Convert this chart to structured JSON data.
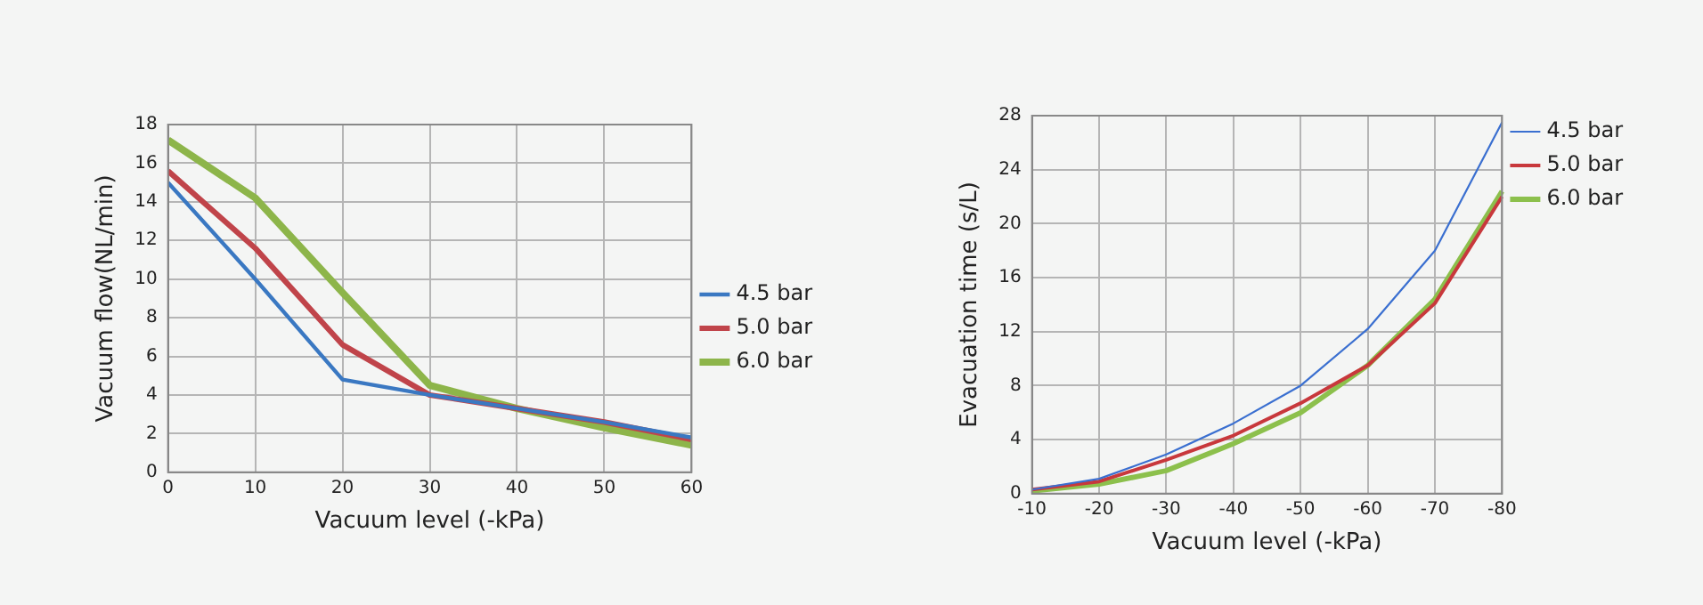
{
  "chart_data": [
    {
      "type": "line",
      "xlabel": "Vacuum level (-kPa)",
      "ylabel": "Vacuum flow(NL/min)",
      "x": [
        0,
        10,
        20,
        30,
        40,
        50,
        60
      ],
      "xlim": [
        0,
        60
      ],
      "xticks": [
        0,
        10,
        20,
        30,
        40,
        50,
        60
      ],
      "ylim": [
        0,
        18
      ],
      "yticks": [
        0,
        2,
        4,
        6,
        8,
        10,
        12,
        14,
        16,
        18
      ],
      "grid": true,
      "legend": "right",
      "marker": "none",
      "line_style": "solid",
      "series": [
        {
          "name": "4.5 bar",
          "color": "#3a78c2",
          "values": [
            15,
            10,
            4.8,
            4.0,
            3.3,
            2.6,
            1.8
          ]
        },
        {
          "name": "5.0 bar",
          "color": "#c0444a",
          "values": [
            15.6,
            11.6,
            6.6,
            4.0,
            3.3,
            2.6,
            1.7
          ]
        },
        {
          "name": "6.0 bar",
          "color": "#8db54a",
          "values": [
            17.2,
            14.2,
            9.3,
            4.5,
            3.3,
            2.3,
            1.4
          ]
        }
      ]
    },
    {
      "type": "line",
      "xlabel": "Vacuum level (-kPa)",
      "ylabel": "Evacuation time (s/L)",
      "categories": [
        "-10",
        "-20",
        "-30",
        "-40",
        "-50",
        "-60",
        "-70",
        "-80"
      ],
      "ylim": [
        0,
        28
      ],
      "yticks": [
        0,
        4,
        8,
        12,
        16,
        20,
        24,
        28
      ],
      "grid": true,
      "legend": "top right",
      "marker": "none",
      "line_style": "solid",
      "series": [
        {
          "name": "4.5 bar",
          "color": "#3a6fd0",
          "values": [
            0.3,
            1.1,
            2.9,
            5.2,
            8.0,
            12.2,
            18.0,
            27.5
          ]
        },
        {
          "name": "5.0 bar",
          "color": "#c8383c",
          "values": [
            0.3,
            0.9,
            2.5,
            4.3,
            6.7,
            9.5,
            14.1,
            22.0
          ]
        },
        {
          "name": "6.0 bar",
          "color": "#8cc04c",
          "values": [
            0.2,
            0.7,
            1.7,
            3.7,
            6.0,
            9.5,
            14.4,
            22.4
          ]
        }
      ]
    }
  ]
}
